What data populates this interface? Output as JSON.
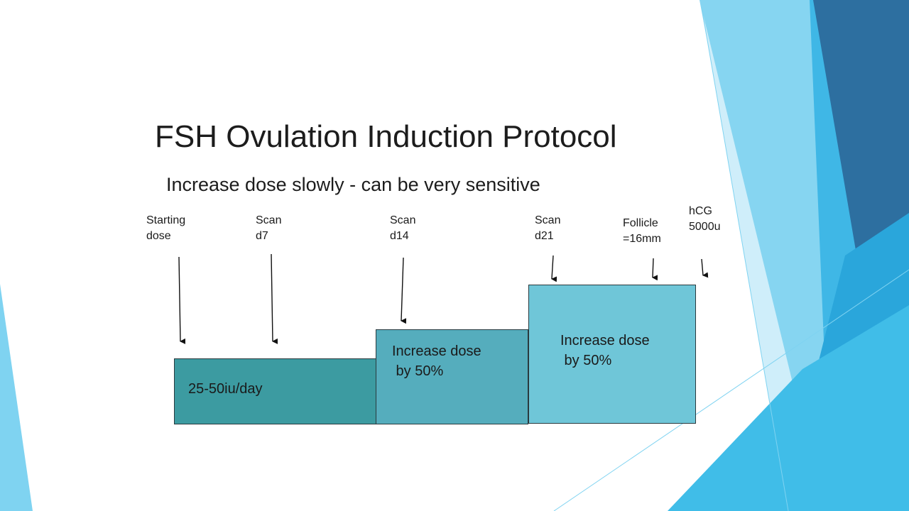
{
  "slide": {
    "title": "FSH Ovulation Induction Protocol",
    "subtitle": "Increase dose slowly - can be very sensitive"
  },
  "labels": {
    "starting_dose": "Starting\ndose",
    "scan_d7": "Scan\nd7",
    "scan_d14": "Scan\nd14",
    "scan_d21": "Scan\nd21",
    "follicle": "Follicle\n=16mm",
    "hcg": "hCG\n5000u"
  },
  "dose_steps": [
    {
      "text": "25-50iu/day",
      "color": "#3c9ba1"
    },
    {
      "text": "Increase dose\n by 50%",
      "color": "#55adbd"
    },
    {
      "text": "Increase dose\n by 50%",
      "color": "#6fc6d8"
    }
  ],
  "colors": {
    "accent_light": "#86d5f1",
    "accent_mid": "#34b4e4",
    "accent_dark": "#2a6f9f"
  }
}
